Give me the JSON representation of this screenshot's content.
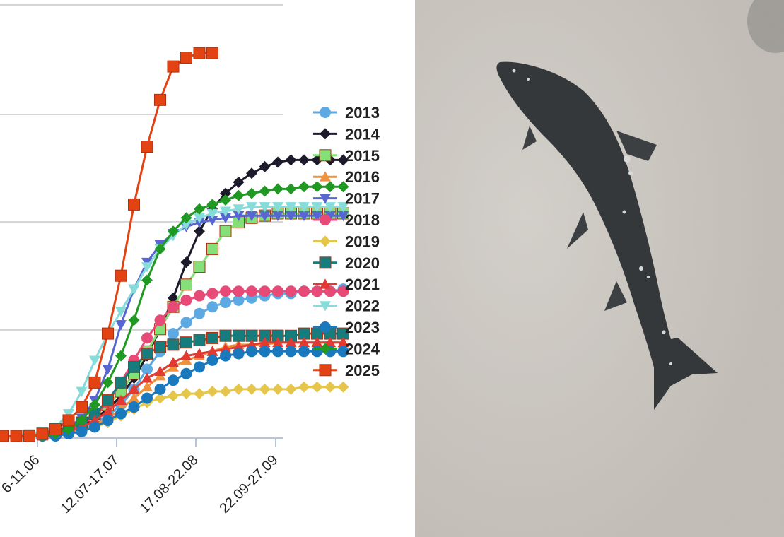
{
  "chart_data": {
    "type": "line",
    "x_tick_labels": [
      "6-11.06",
      "12.07-17.07",
      "17.08-22.08",
      "22.09-27.09"
    ],
    "grid": true,
    "legend_position": "right",
    "series": [
      {
        "name": "2013",
        "color": "#5da9e2",
        "marker": "circle",
        "values": [
          0,
          0,
          0,
          0,
          1,
          2,
          3,
          4,
          6,
          9,
          14,
          21,
          30,
          38,
          46,
          51,
          55,
          58,
          60,
          61,
          62,
          63,
          64,
          64,
          65,
          65,
          65,
          66
        ]
      },
      {
        "name": "2014",
        "color": "#1b1b2b",
        "marker": "diamond",
        "values": [
          0,
          0,
          0,
          0,
          1,
          2,
          3,
          5,
          8,
          12,
          18,
          26,
          36,
          48,
          62,
          78,
          92,
          102,
          109,
          114,
          118,
          121,
          123,
          124,
          124,
          124,
          124,
          124
        ]
      },
      {
        "name": "2015",
        "color": "#86e07a",
        "marker": "square",
        "values": [
          0,
          0,
          0,
          0,
          1,
          2,
          4,
          6,
          9,
          14,
          20,
          28,
          38,
          48,
          58,
          68,
          76,
          84,
          92,
          96,
          98,
          99,
          100,
          100,
          100,
          100,
          100,
          100
        ]
      },
      {
        "name": "2016",
        "color": "#f0923c",
        "marker": "triangle-up",
        "values": [
          0,
          0,
          0,
          0,
          0,
          1,
          2,
          3,
          5,
          8,
          12,
          17,
          22,
          27,
          31,
          34,
          36,
          38,
          40,
          41,
          41,
          41,
          42,
          42,
          42,
          42,
          42,
          42
        ]
      },
      {
        "name": "2017",
        "color": "#5766d0",
        "marker": "triangle-down",
        "values": [
          0,
          0,
          0,
          0,
          1,
          2,
          4,
          8,
          16,
          30,
          50,
          66,
          78,
          86,
          91,
          94,
          96,
          97,
          98,
          99,
          99,
          99,
          99,
          99,
          99,
          99,
          99,
          99
        ]
      },
      {
        "name": "2018",
        "color": "#e84a78",
        "marker": "circle",
        "values": [
          0,
          0,
          0,
          0,
          0,
          1,
          3,
          5,
          9,
          15,
          24,
          34,
          44,
          52,
          58,
          61,
          63,
          64,
          65,
          65,
          65,
          65,
          65,
          65,
          65,
          65,
          65,
          65
        ]
      },
      {
        "name": "2019",
        "color": "#e6c64a",
        "marker": "diamond",
        "values": [
          0,
          0,
          0,
          0,
          0,
          1,
          1,
          2,
          4,
          6,
          9,
          12,
          15,
          17,
          18,
          19,
          19,
          20,
          20,
          21,
          21,
          21,
          21,
          21,
          22,
          22,
          22,
          22
        ]
      },
      {
        "name": "2020",
        "color": "#167c7c",
        "marker": "square",
        "values": [
          0,
          0,
          0,
          0,
          1,
          2,
          4,
          6,
          10,
          16,
          24,
          31,
          37,
          40,
          41,
          42,
          43,
          44,
          45,
          45,
          45,
          45,
          45,
          45,
          46,
          46,
          46,
          46
        ]
      },
      {
        "name": "2021",
        "color": "#e03a32",
        "marker": "triangle-up",
        "values": [
          0,
          0,
          0,
          0,
          0,
          1,
          2,
          4,
          7,
          11,
          16,
          21,
          26,
          29,
          33,
          36,
          37,
          38,
          39,
          40,
          41,
          42,
          42,
          42,
          42,
          42,
          42,
          42
        ]
      },
      {
        "name": "2022",
        "color": "#86dcd9",
        "marker": "triangle-down",
        "values": [
          0,
          0,
          0,
          1,
          2,
          4,
          10,
          20,
          34,
          46,
          56,
          66,
          76,
          84,
          90,
          95,
          98,
          100,
          101,
          102,
          103,
          103,
          103,
          103,
          103,
          103,
          103,
          103
        ]
      },
      {
        "name": "2023",
        "color": "#1a79bd",
        "marker": "circle",
        "values": [
          0,
          0,
          0,
          0,
          0,
          0,
          1,
          2,
          4,
          7,
          10,
          13,
          17,
          21,
          25,
          28,
          31,
          34,
          36,
          37,
          38,
          38,
          38,
          38,
          38,
          38,
          38,
          38
        ]
      },
      {
        "name": "2024",
        "color": "#1f9922",
        "marker": "diamond",
        "values": [
          0,
          0,
          0,
          0,
          0,
          1,
          3,
          7,
          14,
          24,
          36,
          52,
          70,
          84,
          92,
          98,
          102,
          104,
          106,
          108,
          109,
          110,
          111,
          111,
          112,
          112,
          112,
          112
        ]
      },
      {
        "name": "2025",
        "color": "#e34312",
        "marker": "square",
        "values": [
          0,
          0,
          0,
          0,
          1,
          3,
          7,
          13,
          24,
          46,
          72,
          104,
          130,
          151,
          166,
          170,
          172,
          172
        ]
      }
    ]
  },
  "photo": {
    "background_color": "#ccc8c2",
    "fish_color": "#35383a"
  }
}
